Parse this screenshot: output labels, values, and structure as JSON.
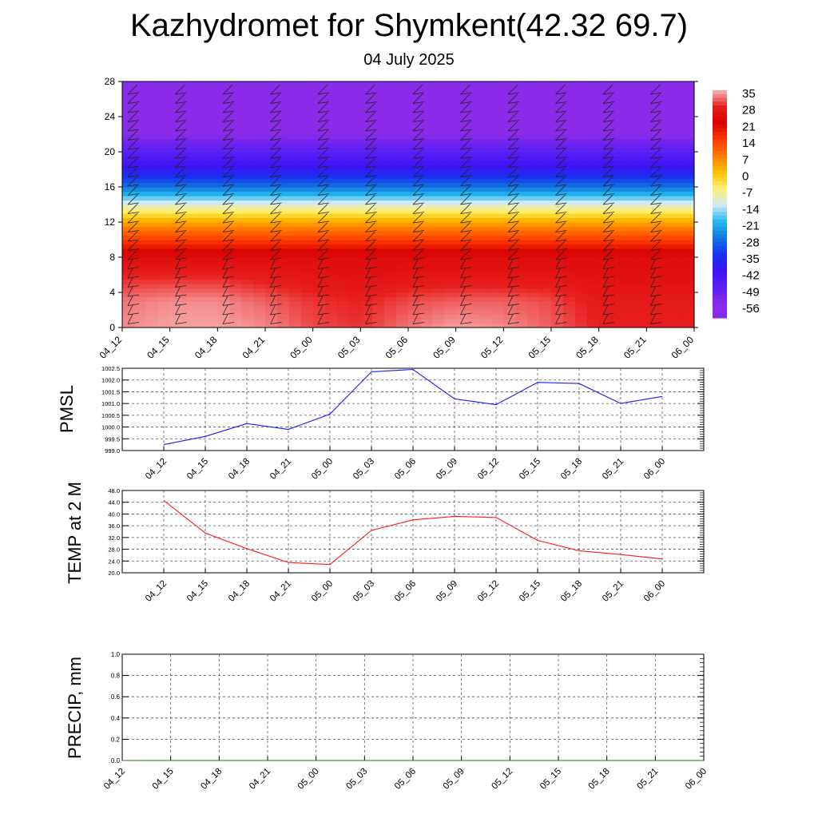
{
  "title": "Kazhydromet for Shymkent(42.32 69.7)",
  "subtitle": "04 July 2025",
  "chart_data": [
    {
      "type": "heatmap",
      "x_categories": [
        "04_12",
        "04_15",
        "04_18",
        "04_21",
        "05_00",
        "05_03",
        "05_06",
        "05_09",
        "05_12",
        "05_15",
        "05_18",
        "05_21",
        "06_00"
      ],
      "y_ticks": [
        "0",
        "4",
        "8",
        "12",
        "16",
        "20",
        "24",
        "28"
      ],
      "ylim": [
        0,
        28
      ],
      "colorbar_labels": [
        "35",
        "28",
        "21",
        "14",
        "7",
        "0",
        "-7",
        "-14",
        "-21",
        "-28",
        "-35",
        "-42",
        "-49",
        "-56"
      ],
      "colorbar_colors": [
        "#f9b8b8",
        "#e81e1e",
        "#d80000",
        "#ff3a00",
        "#ff7a00",
        "#ffc200",
        "#fff176",
        "#cfe9f5",
        "#22b8f0",
        "#1176e0",
        "#1a32f0",
        "#3d14f5",
        "#5a1ff5",
        "#8a2be8"
      ],
      "temperature_profile": [
        {
          "level": 0,
          "values": [
            33,
            34,
            34,
            33,
            30,
            29,
            32,
            34,
            33,
            31,
            28,
            28,
            28
          ]
        },
        {
          "level": 3,
          "values": [
            32,
            33,
            33,
            31,
            29,
            28,
            30,
            31,
            31,
            30,
            27,
            27,
            27
          ]
        },
        {
          "level": 6,
          "values": [
            28,
            28,
            28,
            27,
            26,
            25,
            26,
            26,
            26,
            26,
            25,
            25,
            25
          ]
        },
        {
          "level": 8,
          "values": [
            24,
            24,
            24,
            24,
            24,
            24,
            24,
            24,
            24,
            24,
            24,
            24,
            24
          ]
        },
        {
          "level": 10,
          "values": [
            14,
            14,
            14,
            14,
            14,
            14,
            14,
            14,
            14,
            14,
            14,
            14,
            14
          ]
        },
        {
          "level": 12,
          "values": [
            3,
            3,
            3,
            3,
            3,
            3,
            3,
            3,
            3,
            3,
            3,
            3,
            3
          ]
        },
        {
          "level": 14,
          "values": [
            -12,
            -12,
            -12,
            -12,
            -12,
            -12,
            -12,
            -12,
            -12,
            -12,
            -12,
            -12,
            -12
          ]
        },
        {
          "level": 16,
          "values": [
            -28,
            -28,
            -28,
            -28,
            -28,
            -28,
            -28,
            -28,
            -28,
            -28,
            -28,
            -28,
            -28
          ]
        },
        {
          "level": 18,
          "values": [
            -40,
            -40,
            -40,
            -40,
            -40,
            -40,
            -40,
            -40,
            -40,
            -40,
            -40,
            -40,
            -40
          ]
        },
        {
          "level": 20,
          "values": [
            -49,
            -49,
            -49,
            -49,
            -49,
            -49,
            -49,
            -49,
            -49,
            -49,
            -49,
            -49,
            -49
          ]
        },
        {
          "level": 21,
          "values": [
            -52,
            -52,
            -52,
            -52,
            -52,
            -52,
            -52,
            -52,
            -52,
            -52,
            -52,
            -52,
            -52
          ]
        },
        {
          "level": 22,
          "values": [
            -56,
            -56,
            -56,
            -56,
            -56,
            -56,
            -56,
            -56,
            -56,
            -56,
            -56,
            -56,
            -56
          ]
        },
        {
          "level": 28,
          "values": [
            -58,
            -58,
            -58,
            -58,
            -58,
            -58,
            -58,
            -58,
            -58,
            -58,
            -58,
            -58,
            -58
          ]
        }
      ],
      "has_wind_barbs": true
    },
    {
      "type": "line",
      "ylabel": "PMSL",
      "x": [
        "04_12",
        "04_15",
        "04_18",
        "04_21",
        "05_00",
        "05_03",
        "05_06",
        "05_09",
        "05_12",
        "05_15",
        "05_18",
        "05_21",
        "06_00"
      ],
      "y_ticks": [
        "999.0",
        "999.5",
        "1000.0",
        "1000.5",
        "1001.0",
        "1001.5",
        "1002.0",
        "1002.5"
      ],
      "ylim": [
        999.0,
        1002.5
      ],
      "series": [
        {
          "values": [
            999.25,
            999.6,
            1000.15,
            999.9,
            1000.55,
            1002.35,
            1002.45,
            1001.2,
            1000.95,
            1001.9,
            1001.85,
            1001.0,
            1001.3
          ],
          "color": "#1a1aff"
        }
      ]
    },
    {
      "type": "line",
      "ylabel": "TEMP at 2 M",
      "x": [
        "04_12",
        "04_15",
        "04_18",
        "04_21",
        "05_00",
        "05_03",
        "05_06",
        "05_09",
        "05_12",
        "05_15",
        "05_18",
        "05_21",
        "06_00"
      ],
      "y_ticks": [
        "20.0",
        "24.0",
        "28.0",
        "32.0",
        "36.0",
        "40.0",
        "44.0",
        "48.0"
      ],
      "ylim": [
        20.0,
        48.0
      ],
      "series": [
        {
          "values": [
            44.6,
            33.5,
            28.2,
            23.5,
            22.8,
            34.4,
            38.0,
            39.2,
            38.8,
            31.0,
            27.5,
            26.2,
            24.7
          ],
          "color": "#ff1a1a"
        }
      ]
    },
    {
      "type": "line",
      "ylabel": "PRECIP, mm",
      "x_categories": [
        "04_12",
        "04_15",
        "04_18",
        "04_21",
        "05_00",
        "05_03",
        "05_06",
        "05_09",
        "05_12",
        "05_15",
        "05_18",
        "05_21",
        "06_00"
      ],
      "y_ticks": [
        "0.0",
        "0.2",
        "0.4",
        "0.6",
        "0.8",
        "1.0"
      ],
      "ylim": [
        0.0,
        1.0
      ],
      "series": [
        {
          "values": [
            0,
            0,
            0,
            0,
            0,
            0,
            0,
            0,
            0,
            0,
            0,
            0,
            0
          ],
          "color": "#1a7a1a"
        }
      ]
    }
  ]
}
